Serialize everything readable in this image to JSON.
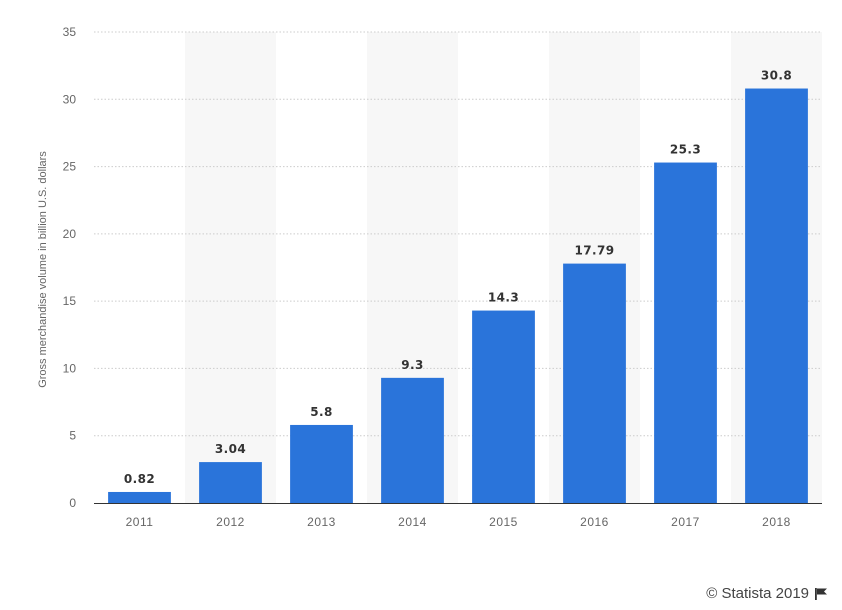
{
  "chart_data": {
    "type": "bar",
    "categories": [
      "2011",
      "2012",
      "2013",
      "2014",
      "2015",
      "2016",
      "2017",
      "2018"
    ],
    "values": [
      0.82,
      3.04,
      5.8,
      9.3,
      14.3,
      17.79,
      25.3,
      30.8
    ],
    "value_labels": [
      "0.82",
      "3.04",
      "5.8",
      "9.3",
      "14.3",
      "17.79",
      "25.3",
      "30.8"
    ],
    "title": "",
    "xlabel": "",
    "ylabel": "Gross merchandise volume in billion U.S. dollars",
    "ylim": [
      0,
      35
    ],
    "yticks": [
      0,
      5,
      10,
      15,
      20,
      25,
      30,
      35
    ],
    "grid": true,
    "colors": {
      "bar": "#2a74da",
      "band": "#f7f7f7",
      "grid": "#cccccc",
      "axis": "#333333"
    }
  },
  "footer": {
    "credit": "© Statista 2019",
    "flag_icon": "flag-icon"
  }
}
